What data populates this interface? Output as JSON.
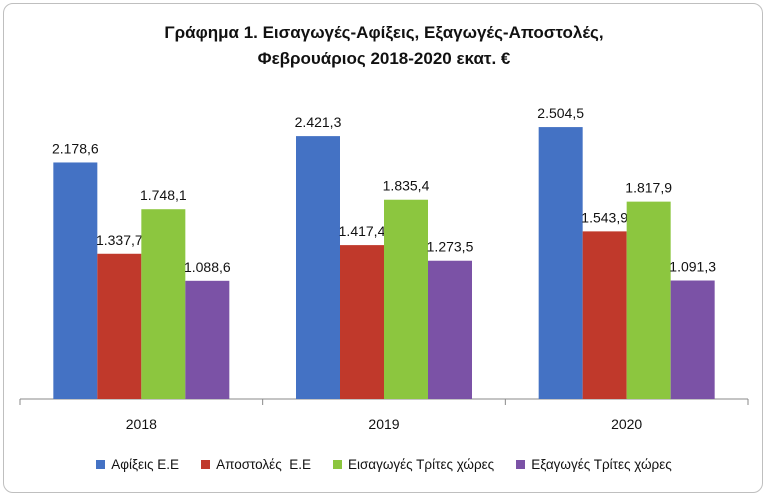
{
  "chart_data": {
    "type": "bar",
    "title_lines": [
      "Γράφημα 1. Εισαγωγές-Αφίξεις, Εξαγωγές-Αποστολές,",
      "Φεβρουάριος 2018-2020 εκατ. €"
    ],
    "categories": [
      "2018",
      "2019",
      "2020"
    ],
    "series": [
      {
        "name": "Αφίξεις Ε.Ε",
        "values": [
          2178.6,
          2421.3,
          2504.5
        ],
        "labels": [
          "2.178,6",
          "2.421,3",
          "2.504,5"
        ],
        "color": "#4472c4"
      },
      {
        "name": "Αποστολές  Ε.Ε",
        "values": [
          1337.7,
          1417.4,
          1543.9
        ],
        "labels": [
          "1.337,7",
          "1.417,4",
          "1.543,9"
        ],
        "color": "#c0392b"
      },
      {
        "name": "Εισαγωγές Τρίτες χώρες",
        "values": [
          1748.1,
          1835.4,
          1817.9
        ],
        "labels": [
          "1.748,1",
          "1.835,4",
          "1.817,9"
        ],
        "color": "#8cc63f"
      },
      {
        "name": "Εξαγωγές Τρίτες χώρες",
        "values": [
          1088.6,
          1273.5,
          1091.3
        ],
        "labels": [
          "1.088,6",
          "1.273,5",
          "1.091,3"
        ],
        "color": "#7b52a6"
      }
    ],
    "ylim": [
      0,
      2800
    ],
    "grid": false,
    "legend_position": "bottom"
  }
}
